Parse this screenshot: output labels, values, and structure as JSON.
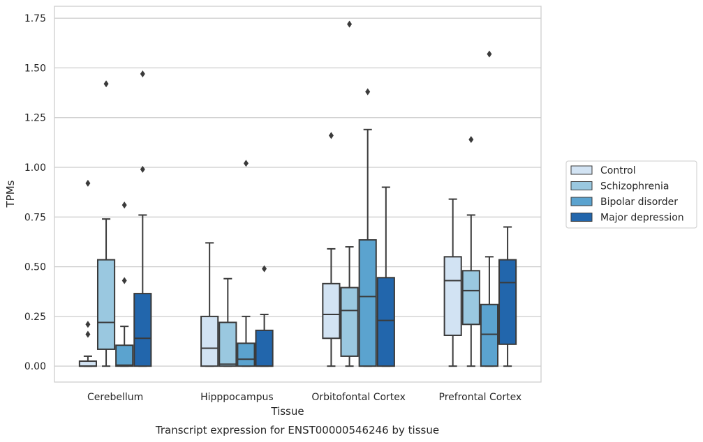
{
  "chart_data": {
    "type": "box",
    "title": "",
    "caption": "Transcript expression for ENST00000546246 by tissue",
    "xlabel": "Tissue",
    "ylabel": "TPMs",
    "ylim": [
      -0.08,
      1.81
    ],
    "yticks": [
      "0.00",
      "0.25",
      "0.50",
      "0.75",
      "1.00",
      "1.25",
      "1.50",
      "1.75"
    ],
    "ytick_values": [
      0,
      0.25,
      0.5,
      0.75,
      1.0,
      1.25,
      1.5,
      1.75
    ],
    "grid": "horizontal",
    "legend_position": "right",
    "categories": [
      "Cerebellum",
      "Hipppocampus",
      "Orbitofontal Cortex",
      "Prefrontal Cortex"
    ],
    "series": [
      {
        "name": "Control",
        "color": "#d2e3f3",
        "boxes": [
          {
            "whislo": 0,
            "q1": 0,
            "med": 0.0,
            "q3": 0.025,
            "whishi": 0.05,
            "fliers": [
              0.16,
              0.21,
              0.92
            ]
          },
          {
            "whislo": 0,
            "q1": 0,
            "med": 0.09,
            "q3": 0.25,
            "whishi": 0.62,
            "fliers": []
          },
          {
            "whislo": 0,
            "q1": 0.14,
            "med": 0.26,
            "q3": 0.415,
            "whishi": 0.59,
            "fliers": [
              1.16
            ]
          },
          {
            "whislo": 0,
            "q1": 0.155,
            "med": 0.43,
            "q3": 0.55,
            "whishi": 0.84,
            "fliers": []
          }
        ]
      },
      {
        "name": "Schizophrenia",
        "color": "#9ac8e0",
        "boxes": [
          {
            "whislo": 0,
            "q1": 0.085,
            "med": 0.22,
            "q3": 0.535,
            "whishi": 0.74,
            "fliers": [
              1.42
            ]
          },
          {
            "whislo": 0,
            "q1": 0,
            "med": 0.01,
            "q3": 0.22,
            "whishi": 0.44,
            "fliers": []
          },
          {
            "whislo": 0,
            "q1": 0.05,
            "med": 0.28,
            "q3": 0.395,
            "whishi": 0.6,
            "fliers": [
              1.72
            ]
          },
          {
            "whislo": 0,
            "q1": 0.21,
            "med": 0.38,
            "q3": 0.48,
            "whishi": 0.76,
            "fliers": [
              1.14
            ]
          }
        ]
      },
      {
        "name": "Bipolar disorder",
        "color": "#5ba3cf",
        "boxes": [
          {
            "whislo": 0,
            "q1": 0,
            "med": 0.005,
            "q3": 0.105,
            "whishi": 0.2,
            "fliers": [
              0.43,
              0.81
            ]
          },
          {
            "whislo": 0,
            "q1": 0,
            "med": 0.035,
            "q3": 0.115,
            "whishi": 0.25,
            "fliers": [
              1.02
            ]
          },
          {
            "whislo": 0,
            "q1": 0,
            "med": 0.35,
            "q3": 0.635,
            "whishi": 1.19,
            "fliers": [
              1.38
            ]
          },
          {
            "whislo": 0,
            "q1": 0,
            "med": 0.16,
            "q3": 0.31,
            "whishi": 0.55,
            "fliers": [
              1.57
            ]
          }
        ]
      },
      {
        "name": "Major depression",
        "color": "#2266ac",
        "boxes": [
          {
            "whislo": 0,
            "q1": 0,
            "med": 0.14,
            "q3": 0.365,
            "whishi": 0.76,
            "fliers": [
              0.99,
              1.47
            ]
          },
          {
            "whislo": 0,
            "q1": 0,
            "med": 0.0,
            "q3": 0.18,
            "whishi": 0.26,
            "fliers": [
              0.49
            ]
          },
          {
            "whislo": 0,
            "q1": 0,
            "med": 0.23,
            "q3": 0.445,
            "whishi": 0.9,
            "fliers": []
          },
          {
            "whislo": 0,
            "q1": 0.11,
            "med": 0.42,
            "q3": 0.535,
            "whishi": 0.7,
            "fliers": []
          }
        ]
      }
    ]
  }
}
